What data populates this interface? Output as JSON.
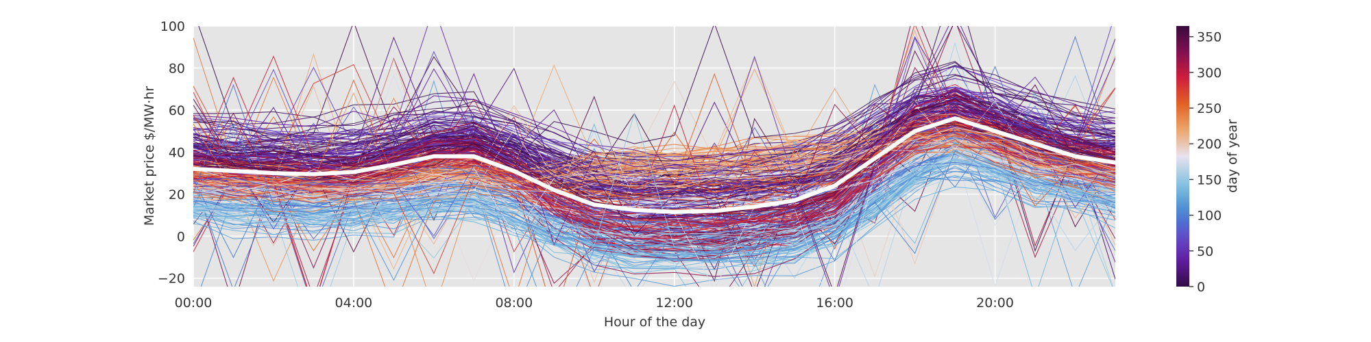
{
  "chart_data": {
    "type": "line",
    "xlabel": "Hour of the day",
    "ylabel": "Market price $/MW·hr",
    "colorbar_label": "day of year",
    "x_ticks": [
      {
        "hour": 0,
        "label": "00:00"
      },
      {
        "hour": 4,
        "label": "04:00"
      },
      {
        "hour": 8,
        "label": "08:00"
      },
      {
        "hour": 12,
        "label": "12:00"
      },
      {
        "hour": 16,
        "label": "16:00"
      },
      {
        "hour": 20,
        "label": "20:00"
      }
    ],
    "y_ticks": [
      {
        "value": -20,
        "label": "−20"
      },
      {
        "value": 0,
        "label": "0"
      },
      {
        "value": 20,
        "label": "20"
      },
      {
        "value": 40,
        "label": "40"
      },
      {
        "value": 60,
        "label": "60"
      },
      {
        "value": 80,
        "label": "80"
      },
      {
        "value": 100,
        "label": "100"
      }
    ],
    "colorbar_ticks": [
      {
        "value": 0,
        "label": "0"
      },
      {
        "value": 50,
        "label": "50"
      },
      {
        "value": 100,
        "label": "100"
      },
      {
        "value": 150,
        "label": "150"
      },
      {
        "value": 200,
        "label": "200"
      },
      {
        "value": 250,
        "label": "250"
      },
      {
        "value": 300,
        "label": "300"
      },
      {
        "value": 350,
        "label": "350"
      }
    ],
    "xlim": [
      0,
      23
    ],
    "ylim": [
      -24,
      100
    ],
    "colorbar_range": [
      0,
      365
    ],
    "colormap": "twilight_shifted",
    "grid": true,
    "background": "#e5e5e5",
    "mean_series": {
      "color": "#ffffff",
      "x": [
        0,
        1,
        2,
        3,
        4,
        5,
        6,
        7,
        8,
        9,
        10,
        11,
        12,
        13,
        14,
        15,
        16,
        17,
        18,
        19,
        20,
        21,
        22,
        23
      ],
      "y": [
        32,
        31,
        30,
        29.5,
        30.5,
        34,
        38,
        38,
        31,
        22,
        15,
        12.5,
        11.5,
        12,
        14,
        17,
        24,
        37,
        50,
        56,
        50,
        44,
        38,
        35
      ]
    },
    "daily_profiles": {
      "count": 365,
      "x": [
        0,
        1,
        2,
        3,
        4,
        5,
        6,
        7,
        8,
        9,
        10,
        11,
        12,
        13,
        14,
        15,
        16,
        17,
        18,
        19,
        20,
        21,
        22,
        23
      ],
      "shape_by_season": {
        "winter": [
          42,
          40,
          39,
          38,
          39,
          42,
          47,
          48,
          42,
          34,
          28,
          26,
          25,
          25,
          27,
          29,
          35,
          47,
          58,
          62,
          56,
          50,
          45,
          42
        ],
        "spring": [
          14,
          12,
          11,
          10,
          11,
          13,
          16,
          16,
          10,
          2,
          -3,
          -5,
          -6,
          -6,
          -5,
          -3,
          3,
          14,
          28,
          36,
          30,
          24,
          20,
          17
        ],
        "summer": [
          28,
          27,
          26,
          25,
          26,
          27,
          29,
          29,
          28,
          29,
          32,
          34,
          35,
          36,
          37,
          38,
          40,
          43,
          46,
          48,
          44,
          38,
          33,
          30
        ],
        "autumn": [
          32,
          30,
          29,
          28,
          29,
          33,
          39,
          40,
          30,
          16,
          6,
          2,
          1,
          1,
          3,
          7,
          16,
          33,
          50,
          56,
          48,
          42,
          37,
          34
        ]
      }
    }
  }
}
